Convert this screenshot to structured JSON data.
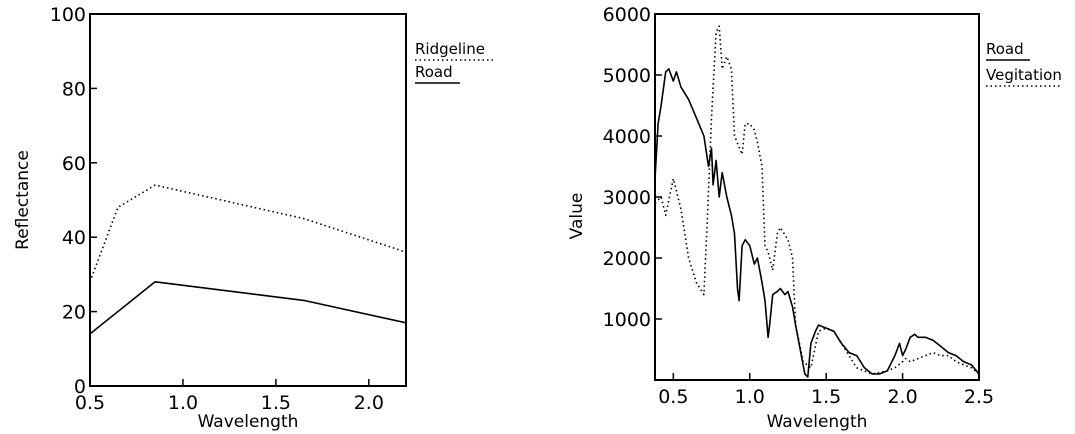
{
  "chart_data": [
    {
      "type": "line",
      "title": "",
      "xlabel": "Wavelength",
      "ylabel": "Reflectance",
      "xlim": [
        0.5,
        2.2
      ],
      "ylim": [
        0,
        100
      ],
      "x_ticks": [
        "0.5",
        "1.0",
        "1.5",
        "2.0"
      ],
      "x_tick_values": [
        0.5,
        1.0,
        1.5,
        2.0
      ],
      "y_ticks": [
        "0",
        "20",
        "40",
        "60",
        "80",
        "100"
      ],
      "y_tick_values": [
        0,
        20,
        40,
        60,
        80,
        100
      ],
      "grid": false,
      "legend_position": "top-right, outside plot",
      "series": [
        {
          "name": "Ridgeline",
          "style": "dotted",
          "x": [
            0.5,
            0.65,
            0.85,
            1.65,
            2.2
          ],
          "y": [
            28,
            48,
            54,
            45,
            36
          ]
        },
        {
          "name": "Road",
          "style": "solid",
          "x": [
            0.5,
            0.85,
            1.65,
            2.2
          ],
          "y": [
            14,
            28,
            23,
            17
          ]
        }
      ]
    },
    {
      "type": "line",
      "title": "",
      "xlabel": "Wavelength",
      "ylabel": "Value",
      "xlim": [
        0.38,
        2.5
      ],
      "ylim": [
        0,
        6000
      ],
      "x_ticks": [
        "0.5",
        "1.0",
        "1.5",
        "2.0",
        "2.5"
      ],
      "x_tick_values": [
        0.5,
        1.0,
        1.5,
        2.0,
        2.5
      ],
      "y_ticks": [
        "1000",
        "2000",
        "3000",
        "4000",
        "5000",
        "6000"
      ],
      "y_tick_values": [
        1000,
        2000,
        3000,
        4000,
        5000,
        6000
      ],
      "grid": false,
      "legend_position": "top-right, outside plot",
      "series": [
        {
          "name": "Road",
          "style": "solid",
          "x": [
            0.38,
            0.4,
            0.42,
            0.45,
            0.47,
            0.5,
            0.52,
            0.55,
            0.6,
            0.65,
            0.7,
            0.73,
            0.75,
            0.76,
            0.78,
            0.8,
            0.82,
            0.85,
            0.88,
            0.9,
            0.92,
            0.93,
            0.95,
            0.97,
            1.0,
            1.03,
            1.05,
            1.08,
            1.1,
            1.12,
            1.13,
            1.15,
            1.18,
            1.2,
            1.23,
            1.25,
            1.28,
            1.3,
            1.33,
            1.36,
            1.38,
            1.4,
            1.43,
            1.45,
            1.5,
            1.55,
            1.6,
            1.65,
            1.7,
            1.75,
            1.8,
            1.85,
            1.9,
            1.95,
            1.98,
            2.0,
            2.02,
            2.05,
            2.08,
            2.1,
            2.15,
            2.2,
            2.25,
            2.3,
            2.35,
            2.4,
            2.45,
            2.5
          ],
          "y": [
            3300,
            4200,
            4500,
            5050,
            5100,
            4900,
            5050,
            4800,
            4600,
            4300,
            4000,
            3500,
            3800,
            3200,
            3600,
            3000,
            3400,
            3000,
            2700,
            2400,
            1500,
            1300,
            2200,
            2300,
            2200,
            1900,
            2000,
            1600,
            1300,
            700,
            900,
            1400,
            1450,
            1500,
            1400,
            1450,
            1200,
            900,
            500,
            100,
            50,
            600,
            800,
            900,
            850,
            800,
            600,
            450,
            400,
            200,
            100,
            100,
            150,
            400,
            600,
            400,
            500,
            700,
            750,
            700,
            700,
            650,
            550,
            450,
            400,
            300,
            250,
            100
          ]
        },
        {
          "name": "Vegitation",
          "style": "dotted",
          "x": [
            0.38,
            0.42,
            0.45,
            0.5,
            0.55,
            0.6,
            0.65,
            0.7,
            0.72,
            0.75,
            0.78,
            0.8,
            0.82,
            0.85,
            0.88,
            0.9,
            0.95,
            0.97,
            1.0,
            1.03,
            1.05,
            1.08,
            1.1,
            1.12,
            1.15,
            1.18,
            1.2,
            1.25,
            1.28,
            1.3,
            1.35,
            1.4,
            1.45,
            1.5,
            1.55,
            1.6,
            1.65,
            1.7,
            1.8,
            1.9,
            1.95,
            2.0,
            2.02,
            2.05,
            2.1,
            2.15,
            2.2,
            2.25,
            2.3,
            2.35,
            2.4,
            2.45,
            2.5
          ],
          "y": [
            2900,
            3000,
            2700,
            3300,
            2800,
            2000,
            1600,
            1400,
            2500,
            4300,
            5700,
            5800,
            5100,
            5300,
            5100,
            4000,
            3700,
            4200,
            4200,
            4100,
            3900,
            3500,
            2200,
            2100,
            1800,
            2400,
            2500,
            2300,
            2000,
            900,
            300,
            200,
            800,
            850,
            800,
            600,
            400,
            200,
            100,
            150,
            200,
            300,
            350,
            300,
            350,
            400,
            450,
            400,
            400,
            300,
            250,
            200,
            100
          ]
        }
      ]
    }
  ]
}
